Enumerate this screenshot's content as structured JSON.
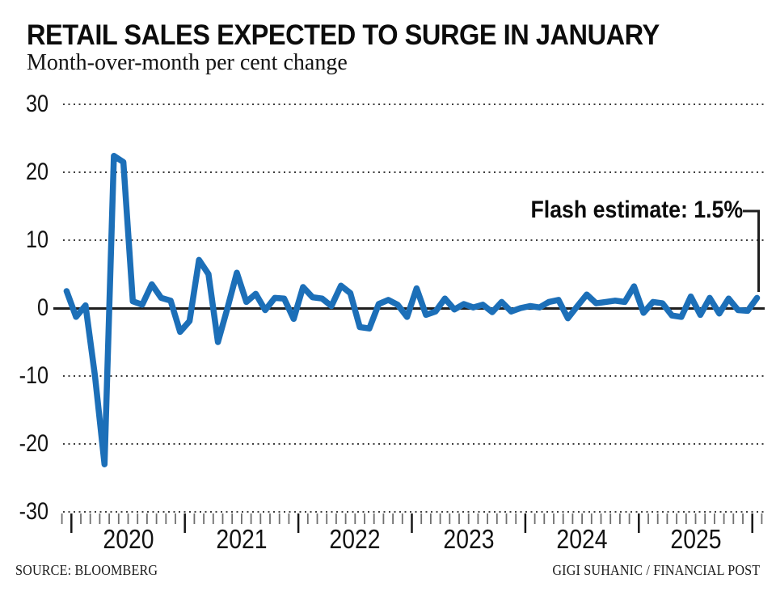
{
  "header": {
    "title": "RETAIL SALES EXPECTED TO SURGE IN JANUARY",
    "subtitle": "Month-over-month per cent change"
  },
  "annotation": {
    "label": "Flash estimate: 1.5%"
  },
  "footer": {
    "source": "SOURCE: BLOOMBERG",
    "credit": "GIGI SUHANIC / FINANCIAL POST"
  },
  "colors": {
    "line": "#1c6fb8",
    "axis": "#1f1f1f",
    "grid": "#3d3d3d",
    "tick_minor": "#6f6f6f",
    "tick_major": "#161616"
  },
  "chart_data": {
    "type": "line",
    "title": "RETAIL SALES EXPECTED TO SURGE IN JANUARY",
    "subtitle": "Month-over-month per cent change",
    "ylabel": "Month-over-month per cent change",
    "ylim": [
      -30,
      30
    ],
    "y_ticks": [
      30,
      20,
      10,
      0,
      -10,
      -20,
      -30
    ],
    "zero_line": true,
    "grid": "dotted-horizontal",
    "x_year_labels": [
      "2020",
      "2021",
      "2022",
      "2023",
      "2024",
      "2025"
    ],
    "flash_estimate": 1.5,
    "months": [
      "2019-12",
      "2020-01",
      "2020-02",
      "2020-03",
      "2020-04",
      "2020-05",
      "2020-06",
      "2020-07",
      "2020-08",
      "2020-09",
      "2020-10",
      "2020-11",
      "2020-12",
      "2021-01",
      "2021-02",
      "2021-03",
      "2021-04",
      "2021-05",
      "2021-06",
      "2021-07",
      "2021-08",
      "2021-09",
      "2021-10",
      "2021-11",
      "2021-12",
      "2022-01",
      "2022-02",
      "2022-03",
      "2022-04",
      "2022-05",
      "2022-06",
      "2022-07",
      "2022-08",
      "2022-09",
      "2022-10",
      "2022-11",
      "2022-12",
      "2023-01",
      "2023-02",
      "2023-03",
      "2023-04",
      "2023-05",
      "2023-06",
      "2023-07",
      "2023-08",
      "2023-09",
      "2023-10",
      "2023-11",
      "2023-12",
      "2024-01",
      "2024-02",
      "2024-03",
      "2024-04",
      "2024-05",
      "2024-06",
      "2024-07",
      "2024-08",
      "2024-09",
      "2024-10",
      "2024-11",
      "2024-12",
      "2025-01",
      "2025-02",
      "2025-03",
      "2025-04",
      "2025-05",
      "2025-06",
      "2025-07",
      "2025-08",
      "2025-09",
      "2025-10",
      "2025-11",
      "2025-12",
      "2026-01"
    ],
    "values": [
      2.5,
      -1.3,
      0.4,
      -10.0,
      -23.0,
      22.4,
      21.5,
      1.0,
      0.5,
      3.5,
      1.5,
      1.1,
      -3.5,
      -1.9,
      7.1,
      5.0,
      -5.0,
      0.0,
      5.2,
      0.9,
      2.1,
      -0.3,
      1.5,
      1.4,
      -1.6,
      3.1,
      1.6,
      1.4,
      0.3,
      3.3,
      2.2,
      -2.8,
      -3.0,
      0.6,
      1.2,
      0.5,
      -1.3,
      2.9,
      -1.0,
      -0.5,
      1.4,
      -0.2,
      0.6,
      0.1,
      0.5,
      -0.6,
      0.9,
      -0.5,
      0.0,
      0.3,
      0.1,
      0.9,
      1.2,
      -1.5,
      0.3,
      2.0,
      0.7,
      0.9,
      1.1,
      0.9,
      3.2,
      -0.7,
      0.9,
      0.7,
      -1.1,
      -1.3,
      1.7,
      -1.0,
      1.5,
      -0.8,
      1.4,
      -0.3,
      -0.4,
      1.5
    ]
  }
}
